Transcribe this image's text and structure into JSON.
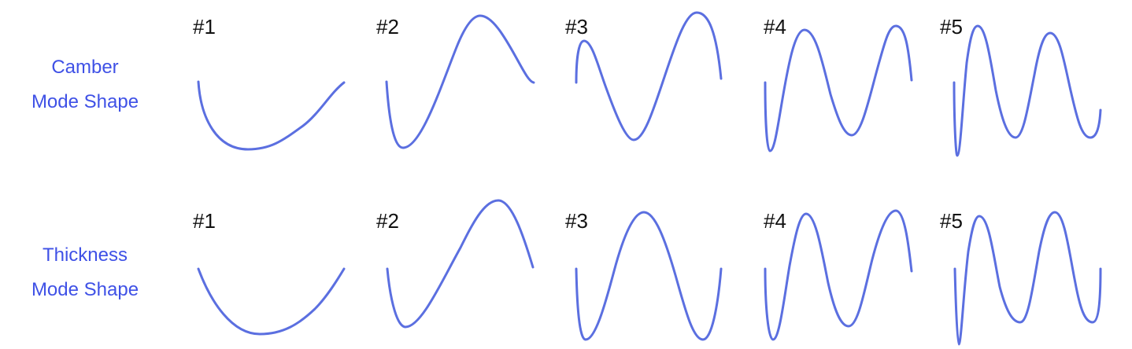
{
  "rows": [
    {
      "id": "camber",
      "label_line1": "Camber",
      "label_line2": "Mode Shape",
      "modes": [
        {
          "label": "#1"
        },
        {
          "label": "#2"
        },
        {
          "label": "#3"
        },
        {
          "label": "#4"
        },
        {
          "label": "#5"
        }
      ]
    },
    {
      "id": "thickness",
      "label_line1": "Thickness",
      "label_line2": "Mode Shape",
      "modes": [
        {
          "label": "#1"
        },
        {
          "label": "#2"
        },
        {
          "label": "#3"
        },
        {
          "label": "#4"
        },
        {
          "label": "#5"
        }
      ]
    }
  ],
  "colors": {
    "label": "#3f51e6",
    "curve": "#5b6fe0",
    "mode_number": "#111111"
  }
}
